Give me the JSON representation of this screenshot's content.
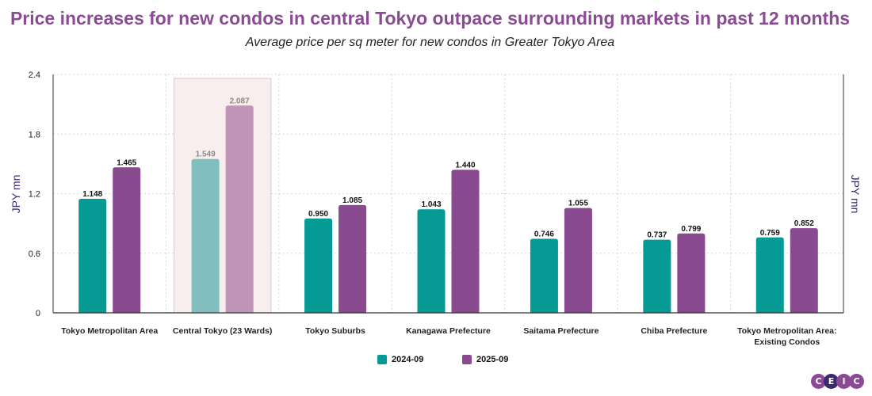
{
  "colors": {
    "title": "#8a4a94",
    "series_2024": "#069a95",
    "series_2025": "#8a4a8f",
    "series_2024_faded": "#80bfbe",
    "series_2025_faded": "#c195b8",
    "highlight_fill": "#f8eeee",
    "highlight_stroke": "#d9c6ca",
    "grid": "#d5d5d5",
    "axis": "#333333",
    "label_dark": "#111111",
    "label_faded": "#888888"
  },
  "logo": {
    "letters": [
      "C",
      "E",
      "I",
      "C"
    ],
    "colors": [
      "#8a4a94",
      "#3d2a6e",
      "#8a4a94",
      "#8a4a94"
    ]
  },
  "chart_data": {
    "type": "bar",
    "title": "Price increases for new condos in central Tokyo outpace surrounding markets in past 12 months",
    "subtitle": "Average price per sq meter for new condos in Greater Tokyo Area",
    "categories": [
      [
        "Tokyo Metropolitan Area"
      ],
      [
        "Central Tokyo (23 Wards)"
      ],
      [
        "Tokyo Suburbs"
      ],
      [
        "Kanagawa Prefecture"
      ],
      [
        "Saitama Prefecture"
      ],
      [
        "Chiba Prefecture"
      ],
      [
        "Tokyo Metropolitan Area:",
        "Existing Condos"
      ]
    ],
    "series": [
      {
        "name": "2024-09",
        "values": [
          1.148,
          1.549,
          0.95,
          1.043,
          0.746,
          0.737,
          0.759
        ]
      },
      {
        "name": "2025-09",
        "values": [
          1.465,
          2.087,
          1.085,
          1.44,
          1.055,
          0.799,
          0.852
        ]
      }
    ],
    "value_labels": [
      [
        "1.148",
        "1.549",
        "0.950",
        "1.043",
        "0.746",
        "0.737",
        "0.759"
      ],
      [
        "1.465",
        "2.087",
        "1.085",
        "1.440",
        "1.055",
        "0.799",
        "0.852"
      ]
    ],
    "highlighted_category": 1,
    "ylabel": "JPY mn",
    "ylabel_right": "JPY mn",
    "ylim": [
      0,
      2.4
    ],
    "yticks": [
      0,
      0.6,
      1.2,
      1.8,
      2.4
    ],
    "ytick_labels": [
      "0",
      "0.6",
      "1.2",
      "1.8",
      "2.4"
    ],
    "grid": true,
    "legend_position": "bottom-center"
  }
}
